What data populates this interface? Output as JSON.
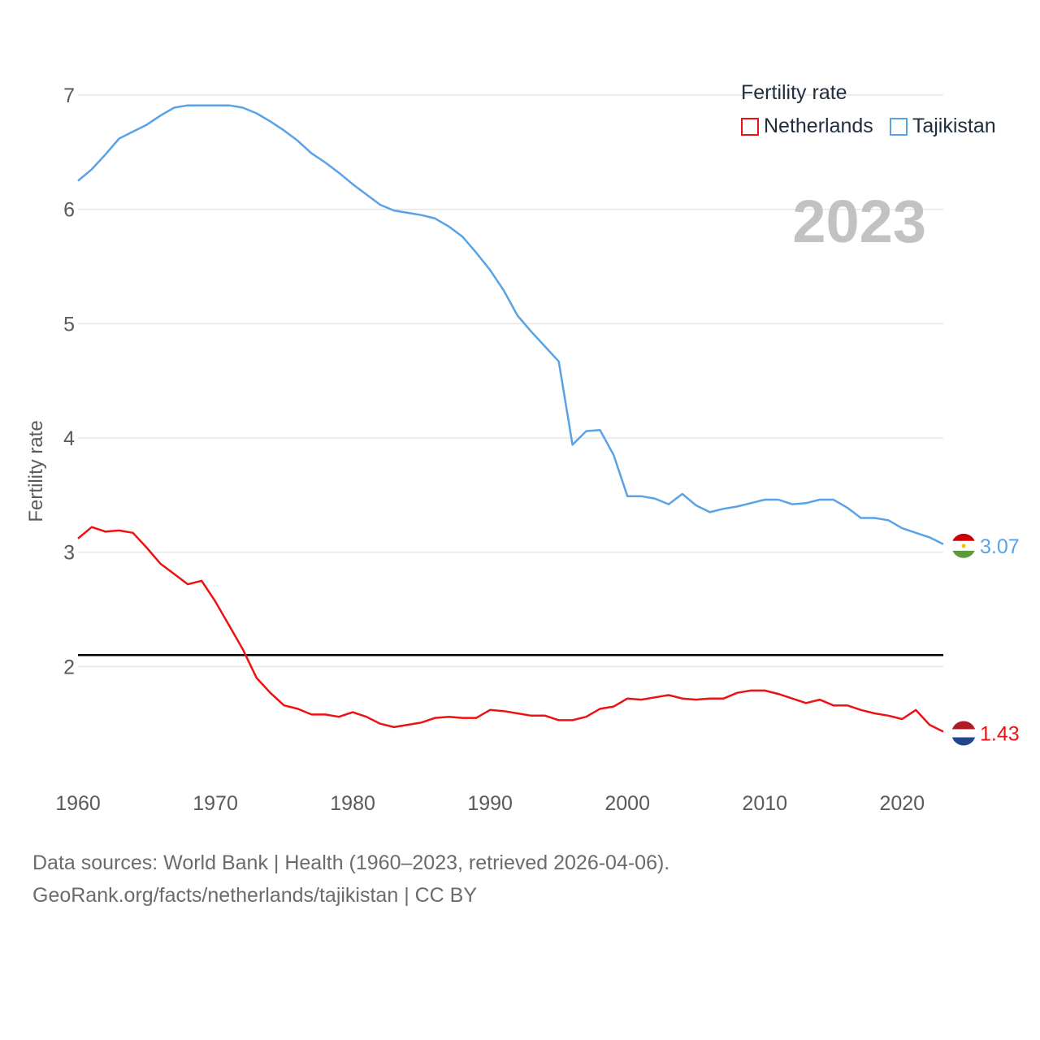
{
  "legend": {
    "title": "Fertility rate",
    "items": [
      {
        "name": "Netherlands",
        "color": "#ee1111"
      },
      {
        "name": "Tajikistan",
        "color": "#5aa2e6"
      }
    ]
  },
  "source": {
    "line1": "Data sources: World Bank | Health (1960–2023, retrieved 2026-04-06).",
    "line2": "GeoRank.org/facts/netherlands/tajikistan | CC BY"
  },
  "chart_data": {
    "type": "line",
    "title": "Fertility rate",
    "year_label": "2023",
    "xlabel": "",
    "ylabel": "Fertility rate",
    "xlim": [
      1960,
      2023
    ],
    "ylim": [
      1.0,
      7.0
    ],
    "x_ticks": [
      1960,
      1970,
      1980,
      1990,
      2000,
      2010,
      2020
    ],
    "y_ticks": [
      2,
      3,
      4,
      5,
      6,
      7
    ],
    "reference_line": 2.1,
    "x": [
      1960,
      1961,
      1962,
      1963,
      1964,
      1965,
      1966,
      1967,
      1968,
      1969,
      1970,
      1971,
      1972,
      1973,
      1974,
      1975,
      1976,
      1977,
      1978,
      1979,
      1980,
      1981,
      1982,
      1983,
      1984,
      1985,
      1986,
      1987,
      1988,
      1989,
      1990,
      1991,
      1992,
      1993,
      1994,
      1995,
      1996,
      1997,
      1998,
      1999,
      2000,
      2001,
      2002,
      2003,
      2004,
      2005,
      2006,
      2007,
      2008,
      2009,
      2010,
      2011,
      2012,
      2013,
      2014,
      2015,
      2016,
      2017,
      2018,
      2019,
      2020,
      2021,
      2022,
      2023
    ],
    "series": [
      {
        "name": "Netherlands",
        "color": "#ee1111",
        "end_label": "1.43",
        "values": [
          3.12,
          3.22,
          3.18,
          3.19,
          3.17,
          3.04,
          2.9,
          2.81,
          2.72,
          2.75,
          2.57,
          2.36,
          2.15,
          1.9,
          1.77,
          1.66,
          1.63,
          1.58,
          1.58,
          1.56,
          1.6,
          1.56,
          1.5,
          1.47,
          1.49,
          1.51,
          1.55,
          1.56,
          1.55,
          1.55,
          1.62,
          1.61,
          1.59,
          1.57,
          1.57,
          1.53,
          1.53,
          1.56,
          1.63,
          1.65,
          1.72,
          1.71,
          1.73,
          1.75,
          1.72,
          1.71,
          1.72,
          1.72,
          1.77,
          1.79,
          1.79,
          1.76,
          1.72,
          1.68,
          1.71,
          1.66,
          1.66,
          1.62,
          1.59,
          1.57,
          1.54,
          1.62,
          1.49,
          1.43
        ]
      },
      {
        "name": "Tajikistan",
        "color": "#5aa2e6",
        "end_label": "3.07",
        "values": [
          6.25,
          6.35,
          6.48,
          6.62,
          6.68,
          6.74,
          6.82,
          6.89,
          6.91,
          6.91,
          6.91,
          6.91,
          6.89,
          6.84,
          6.77,
          6.69,
          6.6,
          6.49,
          6.41,
          6.32,
          6.22,
          6.13,
          6.04,
          5.99,
          5.97,
          5.95,
          5.92,
          5.85,
          5.76,
          5.62,
          5.47,
          5.29,
          5.07,
          4.93,
          4.8,
          4.67,
          3.94,
          4.06,
          4.07,
          3.85,
          3.49,
          3.49,
          3.47,
          3.42,
          3.51,
          3.41,
          3.35,
          3.38,
          3.4,
          3.43,
          3.46,
          3.46,
          3.42,
          3.43,
          3.46,
          3.46,
          3.39,
          3.3,
          3.3,
          3.28,
          3.21,
          3.17,
          3.13,
          3.07
        ]
      }
    ]
  }
}
